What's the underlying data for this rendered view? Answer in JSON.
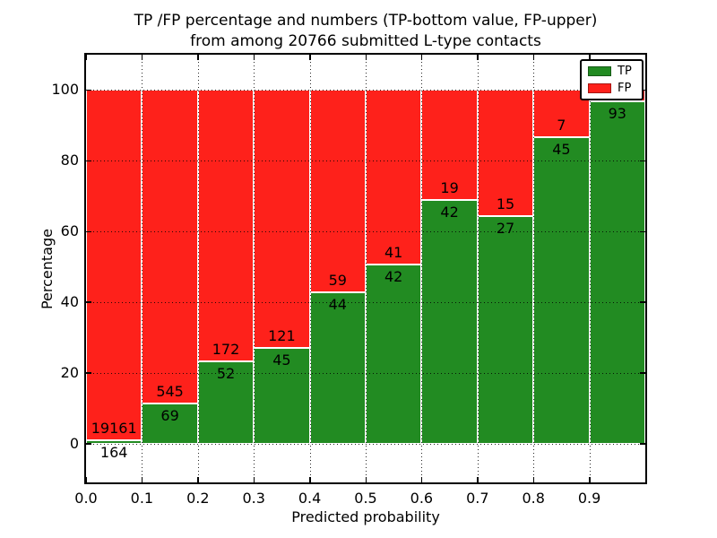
{
  "figure": {
    "title_line1": "TP /FP percentage and numbers (TP-bottom value, FP-upper)",
    "title_line2": "from among 20766 submitted L-type contacts"
  },
  "chart_data": {
    "type": "bar",
    "stacked": true,
    "title": "TP /FP percentage and numbers (TP-bottom value, FP-upper) from among 20766 submitted L-type contacts",
    "xlabel": "Predicted probability",
    "ylabel": "Percentage",
    "xlim": [
      0.0,
      1.0
    ],
    "ylim": [
      -11,
      110
    ],
    "grid": true,
    "xtick_labels": [
      "0.0",
      "0.1",
      "0.2",
      "0.3",
      "0.4",
      "0.5",
      "0.6",
      "0.7",
      "0.8",
      "0.9"
    ],
    "ytick_values": [
      0,
      20,
      40,
      60,
      80,
      100
    ],
    "legend": {
      "position": "upper right",
      "entries": [
        {
          "label": "TP",
          "color": "#228b22"
        },
        {
          "label": "FP",
          "color": "#fe211b"
        }
      ]
    },
    "annotation_rule": "TP count printed just below the green/red boundary, FP count just above it",
    "categories": [
      "0.0-0.1",
      "0.1-0.2",
      "0.2-0.3",
      "0.3-0.4",
      "0.4-0.5",
      "0.5-0.6",
      "0.6-0.7",
      "0.7-0.8",
      "0.8-0.9",
      "0.9-1.0"
    ],
    "bars": [
      {
        "bin": "0.0-0.1",
        "tp_count": 164,
        "fp_count": 19161,
        "tp_pct": 0.85
      },
      {
        "bin": "0.1-0.2",
        "tp_count": 69,
        "fp_count": 545,
        "tp_pct": 11.24
      },
      {
        "bin": "0.2-0.3",
        "tp_count": 52,
        "fp_count": 172,
        "tp_pct": 23.21
      },
      {
        "bin": "0.3-0.4",
        "tp_count": 45,
        "fp_count": 121,
        "tp_pct": 27.11
      },
      {
        "bin": "0.4-0.5",
        "tp_count": 44,
        "fp_count": 59,
        "tp_pct": 42.72
      },
      {
        "bin": "0.5-0.6",
        "tp_count": 42,
        "fp_count": 41,
        "tp_pct": 50.6
      },
      {
        "bin": "0.6-0.7",
        "tp_count": 42,
        "fp_count": 19,
        "tp_pct": 68.85
      },
      {
        "bin": "0.7-0.8",
        "tp_count": 27,
        "fp_count": 15,
        "tp_pct": 64.29
      },
      {
        "bin": "0.8-0.9",
        "tp_count": 45,
        "fp_count": 7,
        "tp_pct": 86.54
      },
      {
        "bin": "0.9-1.0",
        "tp_count": 93,
        "fp_count": null,
        "fp_label_hidden_behind_legend": true,
        "tp_pct": 96.9
      }
    ],
    "colors": {
      "tp": "#228b22",
      "fp": "#fe211b",
      "grid": "#000000",
      "background": "#ffffff",
      "text": "#000000"
    }
  }
}
